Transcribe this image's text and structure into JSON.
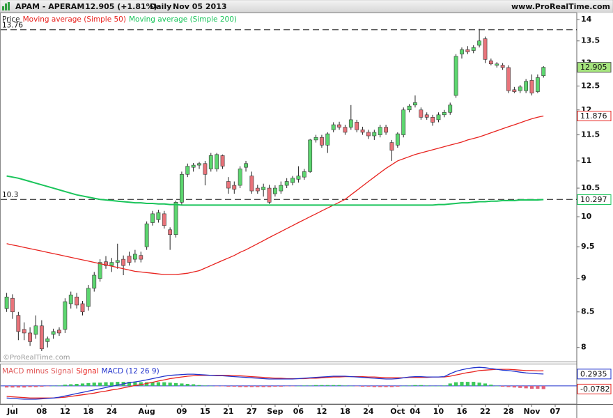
{
  "header": {
    "symbol": "APAM - APERAM",
    "quote": "12.905 (+1.81%)",
    "period": "Daily",
    "date": "Nov 05 2013",
    "site": "www.ProRealTime.com",
    "watermark": "©ProRealTime.com"
  },
  "chart_data": [
    {
      "type": "candlestick",
      "log_scale": true,
      "grid": false,
      "ylim": [
        7.8,
        14.17
      ],
      "yticks": [
        8,
        8.5,
        9,
        9.5,
        10,
        10.5,
        11,
        11.5,
        12,
        12.5,
        13,
        13.5,
        14
      ],
      "hlines": [
        13.76,
        10.3
      ],
      "categories": [
        null,
        "Jul",
        null,
        null,
        null,
        null,
        "08",
        null,
        null,
        null,
        "12",
        null,
        null,
        null,
        "18",
        null,
        null,
        null,
        "24",
        null,
        null,
        null,
        null,
        null,
        "Aug",
        null,
        null,
        null,
        null,
        null,
        "09",
        null,
        null,
        null,
        "15",
        null,
        null,
        null,
        "21",
        null,
        null,
        null,
        "27",
        null,
        null,
        null,
        "Sep",
        null,
        null,
        null,
        "06",
        null,
        null,
        null,
        "12",
        null,
        null,
        null,
        "18",
        null,
        null,
        null,
        "24",
        null,
        null,
        null,
        null,
        "Oct",
        null,
        null,
        "04",
        null,
        null,
        null,
        "10",
        null,
        null,
        null,
        "16",
        null,
        null,
        null,
        "22",
        null,
        null,
        null,
        "28",
        null,
        null,
        null,
        "Nov",
        null,
        null,
        null,
        "07"
      ],
      "series": [
        {
          "name": "Price",
          "type": "candle",
          "up_color": "#5cd66f",
          "down_color": "#e8737a",
          "box_fill": "#a6e57e",
          "show_last": true,
          "open": [
            8.55,
            8.7,
            8.45,
            8.25,
            8.2,
            8.18,
            8.3,
            8.08,
            8.18,
            8.24,
            8.25,
            8.62,
            8.72,
            8.62,
            8.58,
            8.85,
            9.0,
            9.26,
            9.2,
            9.25,
            9.3,
            9.35,
            9.3,
            9.36,
            9.5,
            9.9,
            9.95,
            10.05,
            9.78,
            9.7,
            10.25,
            10.75,
            10.88,
            10.92,
            10.95,
            10.85,
            10.85,
            11.1,
            10.62,
            10.55,
            10.55,
            10.88,
            10.72,
            10.5,
            10.47,
            10.5,
            10.4,
            10.45,
            10.55,
            10.6,
            10.66,
            10.7,
            10.8,
            11.4,
            11.45,
            11.3,
            11.6,
            11.7,
            11.65,
            11.65,
            11.75,
            11.6,
            11.55,
            11.48,
            11.5,
            11.65,
            11.35,
            11.3,
            11.5,
            12.0,
            12.1,
            12.0,
            11.9,
            11.85,
            11.8,
            11.9,
            11.95,
            12.3,
            13.2,
            13.3,
            13.28,
            13.4,
            13.55,
            13.05,
            12.95,
            12.95,
            12.9,
            12.42,
            12.4,
            12.4,
            12.62,
            12.38,
            12.72,
            null,
            null
          ],
          "high": [
            8.78,
            8.76,
            8.5,
            8.35,
            8.28,
            8.45,
            8.38,
            8.15,
            8.26,
            8.28,
            8.7,
            8.8,
            8.78,
            8.66,
            8.9,
            9.1,
            9.3,
            9.35,
            9.32,
            9.55,
            9.36,
            9.42,
            9.45,
            9.42,
            9.92,
            10.1,
            10.12,
            10.1,
            9.82,
            10.28,
            10.8,
            10.95,
            10.96,
            10.98,
            11.0,
            11.15,
            11.15,
            11.12,
            10.7,
            10.62,
            10.9,
            11.0,
            10.8,
            10.56,
            10.58,
            10.56,
            10.55,
            10.62,
            10.68,
            10.72,
            10.9,
            10.85,
            11.42,
            11.5,
            11.5,
            11.55,
            11.75,
            11.76,
            11.7,
            12.1,
            11.8,
            11.66,
            11.6,
            11.6,
            11.7,
            11.7,
            11.4,
            11.55,
            12.05,
            12.12,
            12.3,
            12.05,
            11.95,
            11.9,
            11.95,
            12.0,
            12.15,
            13.2,
            13.35,
            13.38,
            13.4,
            13.78,
            13.6,
            13.1,
            13.02,
            13.0,
            12.95,
            12.48,
            12.52,
            12.65,
            12.75,
            12.75,
            12.93,
            null,
            null
          ],
          "low": [
            8.5,
            8.4,
            8.1,
            8.1,
            8.02,
            8.12,
            7.95,
            8.0,
            8.12,
            8.16,
            8.2,
            8.55,
            8.55,
            8.45,
            8.52,
            8.8,
            8.95,
            9.15,
            9.1,
            9.15,
            9.05,
            9.2,
            9.25,
            9.25,
            9.45,
            9.85,
            9.9,
            9.8,
            9.45,
            9.65,
            10.2,
            10.7,
            10.8,
            10.85,
            10.55,
            10.8,
            10.8,
            10.85,
            10.4,
            10.4,
            10.5,
            10.8,
            10.4,
            10.4,
            10.35,
            10.22,
            10.35,
            10.4,
            10.5,
            10.55,
            10.6,
            10.65,
            10.78,
            11.35,
            11.25,
            11.15,
            11.55,
            11.6,
            11.5,
            11.6,
            11.55,
            11.5,
            11.42,
            11.4,
            11.45,
            11.5,
            11.0,
            11.25,
            11.45,
            11.95,
            12.05,
            11.8,
            11.8,
            11.68,
            11.75,
            11.85,
            11.9,
            12.25,
            13.1,
            13.2,
            13.22,
            13.35,
            13.0,
            12.95,
            12.9,
            12.85,
            12.35,
            12.35,
            12.35,
            12.35,
            12.3,
            12.35,
            12.68,
            null,
            null
          ],
          "close": [
            8.72,
            8.5,
            8.22,
            8.2,
            8.08,
            8.3,
            7.98,
            8.12,
            8.22,
            8.2,
            8.65,
            8.75,
            8.6,
            8.5,
            8.85,
            9.05,
            9.25,
            9.2,
            9.25,
            9.28,
            9.2,
            9.25,
            9.38,
            9.3,
            9.88,
            10.05,
            10.07,
            9.85,
            9.7,
            10.25,
            10.75,
            10.9,
            10.92,
            10.95,
            10.75,
            11.1,
            11.12,
            10.9,
            10.5,
            10.48,
            10.85,
            10.95,
            10.45,
            10.45,
            10.52,
            10.25,
            10.5,
            10.55,
            10.62,
            10.68,
            10.72,
            10.8,
            11.4,
            11.45,
            11.3,
            11.52,
            11.7,
            11.65,
            11.55,
            11.8,
            11.6,
            11.55,
            11.48,
            11.55,
            11.65,
            11.55,
            11.2,
            11.52,
            12.0,
            12.08,
            12.15,
            11.85,
            11.85,
            11.75,
            11.9,
            11.95,
            12.1,
            13.15,
            13.3,
            13.25,
            13.35,
            13.5,
            13.08,
            12.98,
            12.98,
            12.9,
            12.4,
            12.38,
            12.48,
            12.6,
            12.35,
            12.68,
            12.905,
            null,
            null
          ]
        },
        {
          "name": "Moving average (Simple 50)",
          "type": "line",
          "color": "#e8231f",
          "show_last": true,
          "values": [
            9.55,
            9.53,
            9.51,
            9.49,
            9.47,
            9.45,
            9.43,
            9.41,
            9.39,
            9.37,
            9.35,
            9.33,
            9.31,
            9.29,
            9.27,
            9.25,
            9.23,
            9.21,
            9.19,
            9.17,
            9.15,
            9.13,
            9.11,
            9.1,
            9.09,
            9.08,
            9.07,
            9.06,
            9.06,
            9.06,
            9.07,
            9.08,
            9.1,
            9.12,
            9.16,
            9.2,
            9.24,
            9.28,
            9.32,
            9.36,
            9.41,
            9.45,
            9.5,
            9.55,
            9.6,
            9.65,
            9.7,
            9.75,
            9.8,
            9.85,
            9.9,
            9.95,
            10.0,
            10.05,
            10.1,
            10.15,
            10.2,
            10.25,
            10.3,
            10.38,
            10.46,
            10.54,
            10.62,
            10.7,
            10.78,
            10.86,
            10.93,
            11.0,
            11.04,
            11.08,
            11.12,
            11.15,
            11.18,
            11.21,
            11.24,
            11.27,
            11.3,
            11.33,
            11.36,
            11.4,
            11.43,
            11.46,
            11.5,
            11.54,
            11.58,
            11.62,
            11.66,
            11.7,
            11.74,
            11.78,
            11.82,
            11.85,
            11.876,
            null,
            null
          ]
        },
        {
          "name": "Moving average (Simple 200)",
          "type": "line",
          "color": "#19c45a",
          "width": 2,
          "show_last": true,
          "values": [
            10.72,
            10.7,
            10.68,
            10.65,
            10.62,
            10.59,
            10.56,
            10.53,
            10.5,
            10.47,
            10.44,
            10.41,
            10.38,
            10.36,
            10.34,
            10.32,
            10.3,
            10.29,
            10.28,
            10.27,
            10.26,
            10.25,
            10.24,
            10.24,
            10.23,
            10.23,
            10.22,
            10.22,
            10.21,
            10.21,
            10.2,
            10.2,
            10.2,
            10.2,
            10.2,
            10.2,
            10.2,
            10.2,
            10.2,
            10.2,
            10.2,
            10.2,
            10.2,
            10.2,
            10.2,
            10.2,
            10.2,
            10.2,
            10.2,
            10.2,
            10.2,
            10.2,
            10.2,
            10.2,
            10.2,
            10.2,
            10.2,
            10.2,
            10.2,
            10.2,
            10.2,
            10.2,
            10.2,
            10.2,
            10.2,
            10.2,
            10.2,
            10.2,
            10.2,
            10.2,
            10.2,
            10.2,
            10.2,
            10.2,
            10.21,
            10.21,
            10.22,
            10.23,
            10.24,
            10.24,
            10.25,
            10.26,
            10.26,
            10.27,
            10.27,
            10.28,
            10.28,
            10.28,
            10.29,
            10.29,
            10.29,
            10.29,
            10.297,
            null,
            null
          ]
        }
      ]
    },
    {
      "type": "macd",
      "ylim": [
        -0.45,
        0.55
      ],
      "series": [
        {
          "name": "MACD minus Signal",
          "type": "bar",
          "color": "#3cc95a",
          "negative_color": "#e0607a",
          "legend_color": "#e05a5a",
          "box_color": "#e8231f",
          "show_last": true,
          "values": [
            -0.04,
            -0.04,
            -0.04,
            -0.04,
            -0.03,
            -0.03,
            -0.02,
            -0.01,
            0.0,
            0.01,
            0.03,
            0.04,
            0.05,
            0.06,
            0.07,
            0.08,
            0.08,
            0.09,
            0.09,
            0.1,
            0.1,
            0.1,
            0.09,
            0.09,
            0.09,
            0.09,
            0.09,
            0.09,
            0.08,
            0.07,
            0.06,
            0.05,
            0.04,
            0.02,
            0.01,
            0.0,
            -0.01,
            -0.01,
            -0.02,
            -0.02,
            -0.03,
            -0.03,
            -0.03,
            -0.03,
            -0.03,
            -0.03,
            -0.02,
            -0.02,
            -0.01,
            -0.01,
            0.0,
            0.01,
            0.01,
            0.02,
            0.02,
            0.02,
            0.02,
            0.02,
            0.01,
            0.0,
            -0.01,
            -0.02,
            -0.02,
            -0.03,
            -0.03,
            -0.03,
            -0.03,
            -0.02,
            0.0,
            0.01,
            0.02,
            0.02,
            0.01,
            0.0,
            0.0,
            0.01,
            0.06,
            0.09,
            0.1,
            0.1,
            0.1,
            0.08,
            0.06,
            0.03,
            0.0,
            -0.02,
            -0.03,
            -0.04,
            -0.05,
            -0.06,
            -0.07,
            -0.07,
            -0.0782,
            null,
            null
          ]
        },
        {
          "name": "Signal",
          "type": "line",
          "color": "#e8231f",
          "values": [
            -0.26,
            -0.27,
            -0.28,
            -0.29,
            -0.3,
            -0.3,
            -0.3,
            -0.3,
            -0.3,
            -0.29,
            -0.28,
            -0.26,
            -0.24,
            -0.22,
            -0.2,
            -0.18,
            -0.15,
            -0.13,
            -0.1,
            -0.08,
            -0.05,
            -0.02,
            0.01,
            0.03,
            0.06,
            0.09,
            0.12,
            0.15,
            0.18,
            0.2,
            0.22,
            0.24,
            0.25,
            0.26,
            0.26,
            0.26,
            0.26,
            0.26,
            0.26,
            0.25,
            0.25,
            0.24,
            0.23,
            0.22,
            0.21,
            0.2,
            0.19,
            0.19,
            0.18,
            0.18,
            0.18,
            0.18,
            0.19,
            0.19,
            0.2,
            0.21,
            0.22,
            0.22,
            0.23,
            0.23,
            0.23,
            0.23,
            0.22,
            0.22,
            0.21,
            0.2,
            0.2,
            0.2,
            0.2,
            0.21,
            0.21,
            0.21,
            0.21,
            0.22,
            0.22,
            0.22,
            0.24,
            0.27,
            0.3,
            0.33,
            0.35,
            0.38,
            0.39,
            0.4,
            0.41,
            0.41,
            0.41,
            0.4,
            0.39,
            0.38,
            0.38,
            0.37,
            0.3717,
            null,
            null
          ]
        },
        {
          "name": "MACD (12 26 9)",
          "type": "line",
          "color": "#2233cc",
          "show_last": true,
          "values": [
            -0.3,
            -0.31,
            -0.32,
            -0.33,
            -0.33,
            -0.33,
            -0.32,
            -0.31,
            -0.3,
            -0.28,
            -0.25,
            -0.22,
            -0.19,
            -0.16,
            -0.13,
            -0.1,
            -0.07,
            -0.04,
            -0.01,
            0.02,
            0.05,
            0.08,
            0.1,
            0.12,
            0.15,
            0.18,
            0.21,
            0.24,
            0.26,
            0.27,
            0.28,
            0.29,
            0.29,
            0.28,
            0.27,
            0.26,
            0.25,
            0.25,
            0.24,
            0.23,
            0.22,
            0.21,
            0.2,
            0.19,
            0.18,
            0.17,
            0.17,
            0.17,
            0.17,
            0.17,
            0.18,
            0.19,
            0.2,
            0.21,
            0.22,
            0.23,
            0.24,
            0.24,
            0.24,
            0.23,
            0.22,
            0.21,
            0.2,
            0.19,
            0.18,
            0.17,
            0.17,
            0.18,
            0.2,
            0.22,
            0.23,
            0.23,
            0.22,
            0.22,
            0.22,
            0.23,
            0.3,
            0.36,
            0.4,
            0.43,
            0.45,
            0.46,
            0.45,
            0.43,
            0.41,
            0.39,
            0.38,
            0.36,
            0.34,
            0.32,
            0.31,
            0.3,
            0.2935,
            null,
            null
          ]
        }
      ]
    }
  ]
}
